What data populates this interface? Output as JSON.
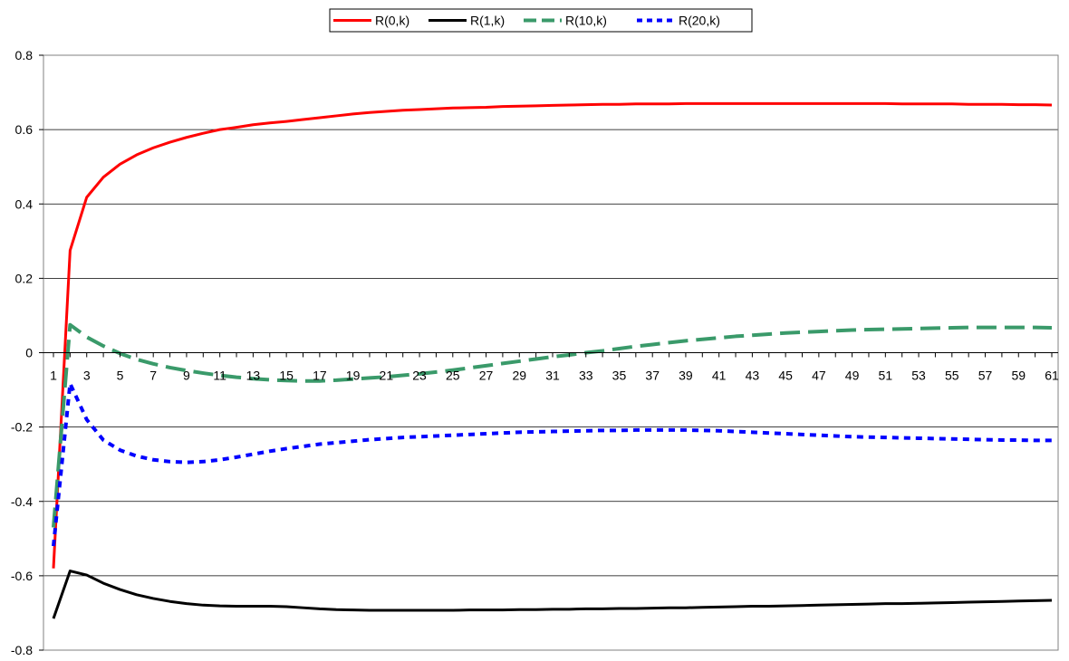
{
  "chart_data": {
    "type": "line",
    "title": "",
    "xlabel": "",
    "ylabel": "",
    "x_categories": [
      1,
      2,
      3,
      4,
      5,
      6,
      7,
      8,
      9,
      10,
      11,
      12,
      13,
      14,
      15,
      16,
      17,
      18,
      19,
      20,
      21,
      22,
      23,
      24,
      25,
      26,
      27,
      28,
      29,
      30,
      31,
      32,
      33,
      34,
      35,
      36,
      37,
      38,
      39,
      40,
      41,
      42,
      43,
      44,
      45,
      46,
      47,
      48,
      49,
      50,
      51,
      52,
      53,
      54,
      55,
      56,
      57,
      58,
      59,
      60,
      61
    ],
    "x_tick_labels": [
      "1",
      "3",
      "5",
      "7",
      "9",
      "11",
      "13",
      "15",
      "17",
      "19",
      "21",
      "23",
      "25",
      "27",
      "29",
      "31",
      "33",
      "35",
      "37",
      "39",
      "41",
      "43",
      "45",
      "47",
      "49",
      "51",
      "53",
      "55",
      "57",
      "59",
      "61"
    ],
    "ylim": [
      -0.8,
      0.8
    ],
    "y_ticks": [
      -0.8,
      -0.6,
      -0.4,
      -0.2,
      0,
      0.2,
      0.4,
      0.6,
      0.8
    ],
    "y_tick_labels": [
      "-0.8",
      "-0.6",
      "-0.4",
      "-0.2",
      "0",
      "0.2",
      "0.4",
      "0.6",
      "0.8"
    ],
    "grid": "horizontal",
    "legend_position": "top-center",
    "series": [
      {
        "name": "R(0,k)",
        "color": "#ff0000",
        "style": "solid",
        "values": [
          -0.58,
          0.275,
          0.418,
          0.472,
          0.507,
          0.532,
          0.551,
          0.566,
          0.579,
          0.59,
          0.6,
          0.606,
          0.613,
          0.618,
          0.622,
          0.627,
          0.632,
          0.637,
          0.642,
          0.646,
          0.649,
          0.652,
          0.654,
          0.656,
          0.658,
          0.659,
          0.66,
          0.662,
          0.663,
          0.664,
          0.665,
          0.666,
          0.667,
          0.668,
          0.668,
          0.669,
          0.669,
          0.669,
          0.67,
          0.67,
          0.67,
          0.67,
          0.67,
          0.67,
          0.67,
          0.67,
          0.67,
          0.67,
          0.67,
          0.67,
          0.67,
          0.669,
          0.669,
          0.669,
          0.669,
          0.668,
          0.668,
          0.668,
          0.667,
          0.667,
          0.666
        ]
      },
      {
        "name": "R(1,k)",
        "color": "#000000",
        "style": "solid",
        "values": [
          -0.715,
          -0.587,
          -0.598,
          -0.62,
          -0.637,
          -0.651,
          -0.661,
          -0.669,
          -0.675,
          -0.679,
          -0.681,
          -0.682,
          -0.682,
          -0.682,
          -0.683,
          -0.686,
          -0.689,
          -0.691,
          -0.692,
          -0.693,
          -0.693,
          -0.693,
          -0.693,
          -0.693,
          -0.693,
          -0.692,
          -0.692,
          -0.692,
          -0.691,
          -0.691,
          -0.69,
          -0.69,
          -0.689,
          -0.689,
          -0.688,
          -0.688,
          -0.687,
          -0.686,
          -0.686,
          -0.685,
          -0.684,
          -0.683,
          -0.682,
          -0.682,
          -0.681,
          -0.68,
          -0.679,
          -0.678,
          -0.677,
          -0.676,
          -0.675,
          -0.675,
          -0.674,
          -0.673,
          -0.672,
          -0.671,
          -0.67,
          -0.669,
          -0.668,
          -0.667,
          -0.666
        ]
      },
      {
        "name": "R(10,k)",
        "color": "#3a9a6a",
        "style": "dashed",
        "values": [
          -0.47,
          0.075,
          0.042,
          0.018,
          -0.002,
          -0.018,
          -0.03,
          -0.04,
          -0.048,
          -0.055,
          -0.061,
          -0.066,
          -0.07,
          -0.073,
          -0.075,
          -0.076,
          -0.076,
          -0.074,
          -0.071,
          -0.068,
          -0.065,
          -0.061,
          -0.057,
          -0.052,
          -0.047,
          -0.041,
          -0.035,
          -0.029,
          -0.023,
          -0.017,
          -0.011,
          -0.006,
          0.0,
          0.005,
          0.011,
          0.017,
          0.022,
          0.027,
          0.032,
          0.036,
          0.04,
          0.044,
          0.047,
          0.05,
          0.053,
          0.055,
          0.057,
          0.059,
          0.061,
          0.062,
          0.063,
          0.064,
          0.065,
          0.066,
          0.067,
          0.068,
          0.068,
          0.068,
          0.068,
          0.068,
          0.067
        ]
      },
      {
        "name": "R(20,k)",
        "color": "#0000ff",
        "style": "dotted",
        "values": [
          -0.52,
          -0.083,
          -0.18,
          -0.235,
          -0.262,
          -0.278,
          -0.288,
          -0.293,
          -0.295,
          -0.293,
          -0.288,
          -0.281,
          -0.273,
          -0.265,
          -0.258,
          -0.252,
          -0.246,
          -0.242,
          -0.238,
          -0.234,
          -0.231,
          -0.228,
          -0.226,
          -0.224,
          -0.222,
          -0.22,
          -0.218,
          -0.216,
          -0.214,
          -0.213,
          -0.212,
          -0.211,
          -0.21,
          -0.209,
          -0.209,
          -0.208,
          -0.208,
          -0.208,
          -0.208,
          -0.209,
          -0.21,
          -0.212,
          -0.214,
          -0.216,
          -0.218,
          -0.22,
          -0.222,
          -0.224,
          -0.226,
          -0.227,
          -0.228,
          -0.229,
          -0.23,
          -0.231,
          -0.232,
          -0.233,
          -0.234,
          -0.235,
          -0.235,
          -0.236,
          -0.236
        ]
      }
    ]
  }
}
